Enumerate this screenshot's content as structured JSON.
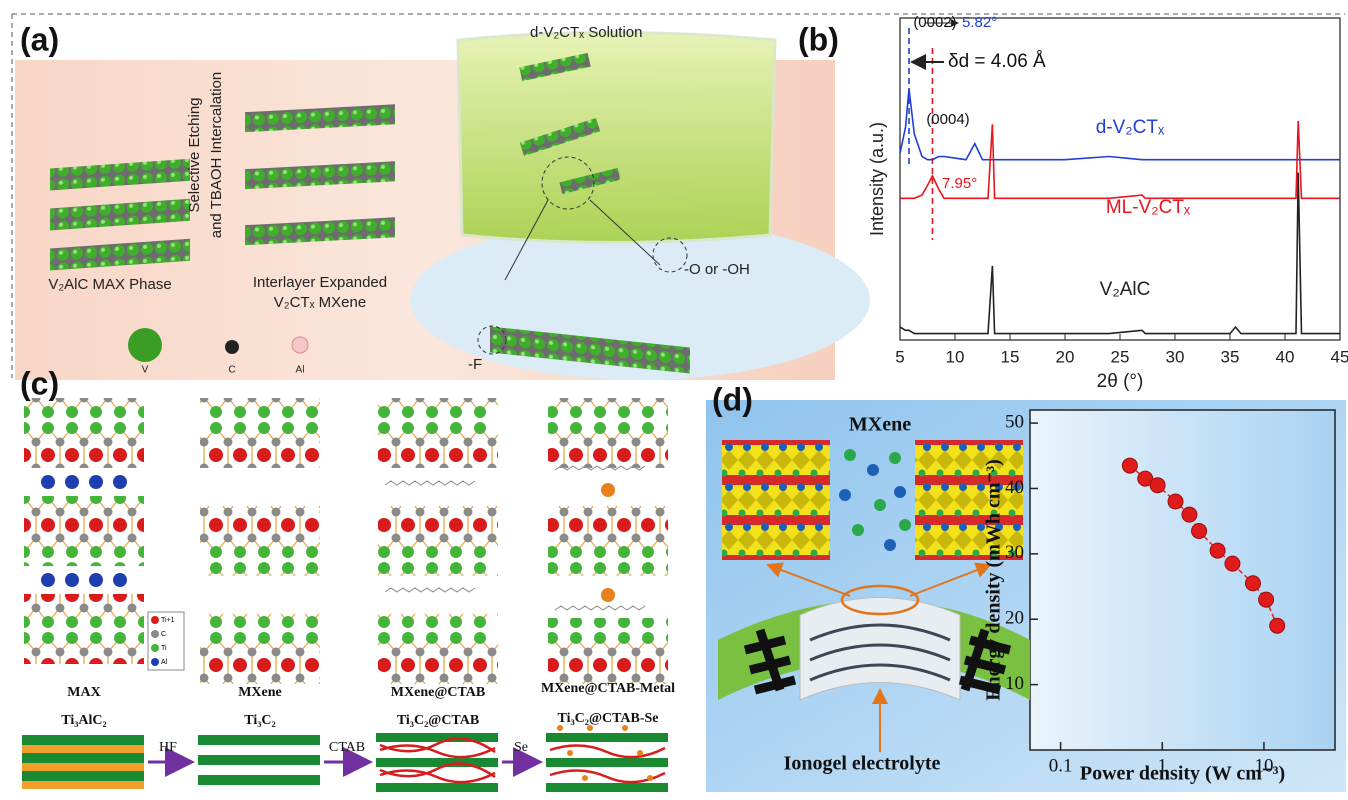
{
  "panel_labels": [
    "(a)",
    "(b)",
    "(c)",
    "(d)"
  ],
  "panel_a": {
    "solution_label": "d-V₂CTₓ Solution",
    "process_label": [
      "Selective Etching",
      "and TBAOH Intercalation"
    ],
    "max_label": "V₂AlC MAX Phase",
    "mxene_label": [
      "Interlayer Expanded",
      "V₂CTₓ MXene"
    ],
    "terminations": [
      "-O or -OH",
      "-F"
    ],
    "legend": [
      "V",
      "C",
      "Al"
    ]
  },
  "panel_c": {
    "columns": [
      {
        "name": "MAX",
        "formula": "Ti₃AlC₂"
      },
      {
        "name": "MXene",
        "formula": "Ti₃C₂"
      },
      {
        "name": "MXene@CTAB",
        "formula": "Ti₃C₂@CTAB"
      },
      {
        "name": "MXene@CTAB-Metal",
        "formula": "Ti₃C₂@CTAB-Se"
      }
    ],
    "arrows": [
      "HF",
      "CTAB",
      "Se"
    ],
    "legend": [
      "Ti+1",
      "C",
      "Ti",
      "Al"
    ]
  },
  "panel_d": {
    "schematic_title": "MXene",
    "electrolyte_label": "Ionogel electrolyte"
  },
  "chart_data": [
    {
      "type": "line",
      "xlabel": "2θ (°)",
      "ylabel": "Intensity (a.u.)",
      "x": [
        5,
        5.5,
        5.82,
        6.3,
        7,
        7.5,
        7.95,
        8.5,
        9,
        11,
        11.8,
        12.5,
        13,
        13.4,
        13.6,
        14,
        20,
        24,
        27,
        27.3,
        30,
        35,
        35.5,
        36,
        40,
        41,
        41.2,
        41.5,
        42,
        45
      ],
      "series": [
        {
          "name": "d-V₂CTₓ",
          "color": "#1f3fd8",
          "values": [
            58,
            66,
            78,
            64,
            57,
            56,
            56,
            57,
            57,
            56,
            61,
            56,
            56,
            56,
            56,
            56,
            56,
            57,
            56,
            56,
            56,
            56,
            56,
            56,
            56,
            56,
            56,
            56,
            56,
            56
          ]
        },
        {
          "name": "ML-V₂CTₓ",
          "color": "#e8161e",
          "values": [
            44,
            44,
            44,
            44,
            45,
            48,
            51,
            47,
            44,
            44,
            44,
            44,
            44,
            67,
            44,
            44,
            44,
            44,
            45,
            44,
            44,
            44,
            44,
            44,
            44,
            44,
            68,
            44,
            44,
            44
          ]
        },
        {
          "name": "V₂AlC",
          "color": "#222222",
          "values": [
            4,
            3,
            3,
            2,
            2,
            2,
            2,
            2,
            2,
            2,
            2,
            2,
            2,
            23,
            2,
            2,
            2,
            2,
            3,
            2,
            2,
            2,
            4,
            2,
            2,
            2,
            52,
            2,
            2,
            2
          ]
        }
      ],
      "xlim": [
        5,
        45
      ],
      "xticks": [
        5,
        10,
        15,
        20,
        25,
        30,
        35,
        40,
        45
      ],
      "ylim": [
        0,
        100
      ],
      "reference_lines": [
        {
          "value": 5.82,
          "label": "5.82°",
          "color": "#1f3fd8"
        },
        {
          "value": 7.95,
          "label": "7.95°",
          "color": "#e8161e"
        }
      ],
      "annotations": [
        "(0002)",
        "δd = 4.06 Å",
        "(0004)"
      ]
    },
    {
      "type": "scatter",
      "xlabel": "Power density (W cm⁻³)",
      "ylabel": "Energy density (mWh cm⁻³)",
      "x": [
        0.48,
        0.68,
        0.9,
        1.35,
        1.85,
        2.3,
        3.5,
        4.9,
        7.8,
        10.5,
        13.5
      ],
      "values": [
        43.5,
        41.5,
        40.5,
        38,
        36,
        33.5,
        30.5,
        28.5,
        25.5,
        23,
        19
      ],
      "color": "#e01b1b",
      "xscale": "log",
      "xlim": [
        0.05,
        50
      ],
      "xticks": [
        0.1,
        1,
        10
      ],
      "ylim": [
        0,
        52
      ],
      "yticks": [
        10,
        20,
        30,
        40,
        50
      ]
    }
  ]
}
